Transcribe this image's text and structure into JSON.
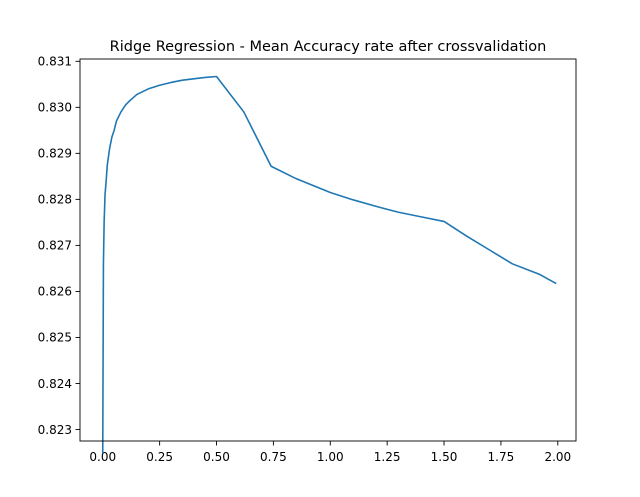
{
  "chart_data": {
    "type": "line",
    "title": "Ridge Regression - Mean Accuracy rate after crossvalidation",
    "xlabel": "",
    "ylabel": "",
    "xlim": [
      -0.1,
      2.08
    ],
    "ylim": [
      0.82275,
      0.83105
    ],
    "xticks": [
      0.0,
      0.25,
      0.5,
      0.75,
      1.0,
      1.25,
      1.5,
      1.75,
      2.0
    ],
    "xtick_labels": [
      "0.00",
      "0.25",
      "0.50",
      "0.75",
      "1.00",
      "1.25",
      "1.50",
      "1.75",
      "2.00"
    ],
    "yticks": [
      0.823,
      0.824,
      0.825,
      0.826,
      0.827,
      0.828,
      0.829,
      0.83,
      0.831
    ],
    "ytick_labels": [
      "0.823",
      "0.824",
      "0.825",
      "0.826",
      "0.827",
      "0.828",
      "0.829",
      "0.830",
      "0.831"
    ],
    "grid": false,
    "legend": "none",
    "series": [
      {
        "color": "#1f77b4",
        "x": [
          0.0,
          0.003,
          0.006,
          0.01,
          0.015,
          0.02,
          0.03,
          0.04,
          0.05,
          0.06,
          0.08,
          0.1,
          0.12,
          0.15,
          0.2,
          0.25,
          0.3,
          0.35,
          0.4,
          0.45,
          0.5,
          0.62,
          0.74,
          0.85,
          1.0,
          1.1,
          1.2,
          1.3,
          1.4,
          1.5,
          1.6,
          1.7,
          1.8,
          1.92,
          1.99
        ],
        "y": [
          0.8225,
          0.8266,
          0.8275,
          0.8281,
          0.8284,
          0.82875,
          0.8291,
          0.82935,
          0.8295,
          0.8297,
          0.8299,
          0.83005,
          0.83015,
          0.83028,
          0.8304,
          0.83048,
          0.83054,
          0.83059,
          0.83062,
          0.83065,
          0.83067,
          0.8299,
          0.82872,
          0.82845,
          0.82815,
          0.82799,
          0.82785,
          0.82772,
          0.82762,
          0.82752,
          0.8272,
          0.8269,
          0.8266,
          0.82637,
          0.82618
        ]
      }
    ]
  }
}
